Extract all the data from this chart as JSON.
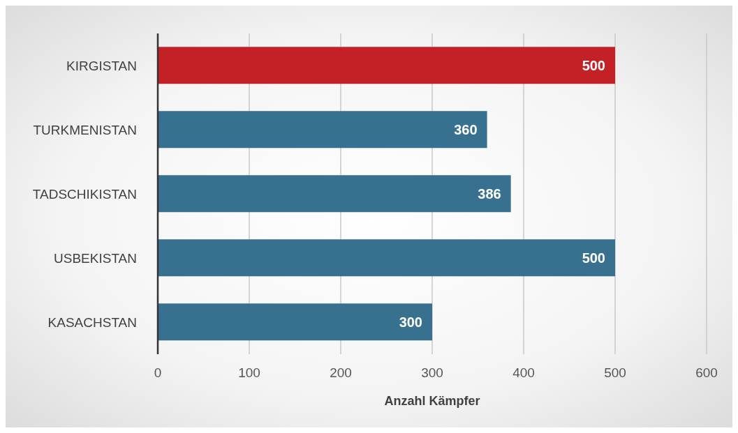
{
  "chart_data": {
    "type": "bar",
    "orientation": "horizontal",
    "xlabel": "Anzahl Kämpfer",
    "categories": [
      "KIRGISTAN",
      "TURKMENISTAN",
      "TADSCHIKISTAN",
      "USBEKISTAN",
      "KASACHSTAN"
    ],
    "values": [
      500,
      360,
      386,
      500,
      300
    ],
    "colors": [
      "#c42126",
      "#38718f",
      "#38718f",
      "#38718f",
      "#38718f"
    ],
    "xlim": [
      0,
      600
    ],
    "xticks": [
      0,
      100,
      200,
      300,
      400,
      500,
      600
    ],
    "grid": "x",
    "data_labels": true
  }
}
